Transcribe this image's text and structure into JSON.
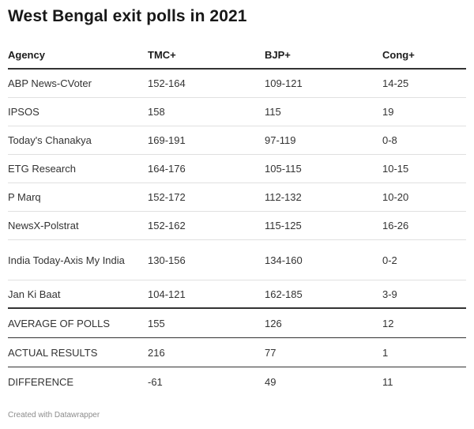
{
  "title": "West Bengal exit polls in 2021",
  "table": {
    "headers": [
      "Agency",
      "TMC+",
      "BJP+",
      "Cong+"
    ],
    "rows": [
      [
        "ABP News-CVoter",
        "152-164",
        "109-121",
        "14-25"
      ],
      [
        "IPSOS",
        "158",
        "115",
        "19"
      ],
      [
        "Today's Chanakya",
        "169-191",
        "97-119",
        "0-8"
      ],
      [
        "ETG Research",
        "164-176",
        "105-115",
        "10-15"
      ],
      [
        "P Marq",
        "152-172",
        "112-132",
        "10-20"
      ],
      [
        "NewsX-Polstrat",
        "152-162",
        "115-125",
        "16-26"
      ],
      [
        "India Today-Axis My India",
        "130-156",
        "134-160",
        "0-2"
      ],
      [
        "Jan Ki Baat",
        "104-121",
        "162-185",
        "3-9"
      ]
    ],
    "summary": [
      [
        "AVERAGE OF POLLS",
        "155",
        "126",
        "12"
      ],
      [
        "ACTUAL RESULTS",
        "216",
        "77",
        "1"
      ],
      [
        "DIFFERENCE",
        "-61",
        "49",
        "11"
      ]
    ]
  },
  "footer": "Created with Datawrapper"
}
